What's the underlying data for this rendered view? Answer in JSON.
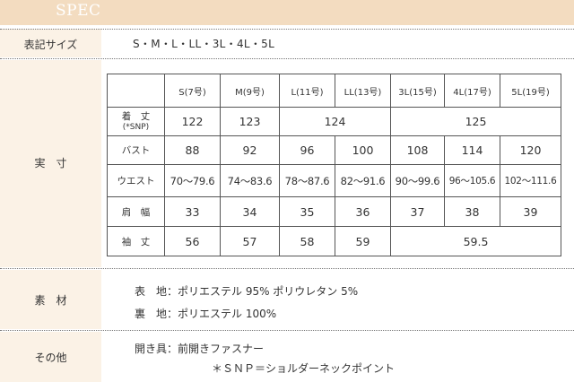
{
  "spec": {
    "title": "SPEC"
  },
  "labels": {
    "size_notation": "表記サイズ",
    "measurements": "実　寸",
    "material": "素　材",
    "other": "その他"
  },
  "sizes_text": "S・M・L・LL・3L・4L・5L",
  "table": {
    "headers": [
      "S(7号)",
      "M(9号)",
      "L(11号)",
      "LL(13号)",
      "3L(15号)",
      "4L(17号)",
      "5L(19号)"
    ],
    "length_label_1": "着　丈",
    "length_label_2": "(*SNP)",
    "length_values": [
      "122",
      "123",
      "124",
      "125"
    ],
    "bust_label": "バスト",
    "bust_values": [
      "88",
      "92",
      "96",
      "100",
      "108",
      "114",
      "120"
    ],
    "waist_label": "ウエスト",
    "waist_values": [
      "70〜79.6",
      "74〜83.6",
      "78〜87.6",
      "82〜91.6",
      "90〜99.6",
      "96〜105.6",
      "102〜111.6"
    ],
    "shoulder_label": "肩　幅",
    "shoulder_values": [
      "33",
      "34",
      "35",
      "36",
      "37",
      "38",
      "39"
    ],
    "sleeve_label": "袖　丈",
    "sleeve_values": [
      "56",
      "57",
      "58",
      "59",
      "59.5"
    ]
  },
  "material": {
    "outer": "表　地：ポリエステル 95%  ポリウレタン 5%",
    "lining": "裏　地：ポリエステル 100%"
  },
  "other": {
    "fastening": "開き具：前開きファスナー",
    "snp_note": "＊ＳＮＰ＝ショルダーネックポイント"
  }
}
